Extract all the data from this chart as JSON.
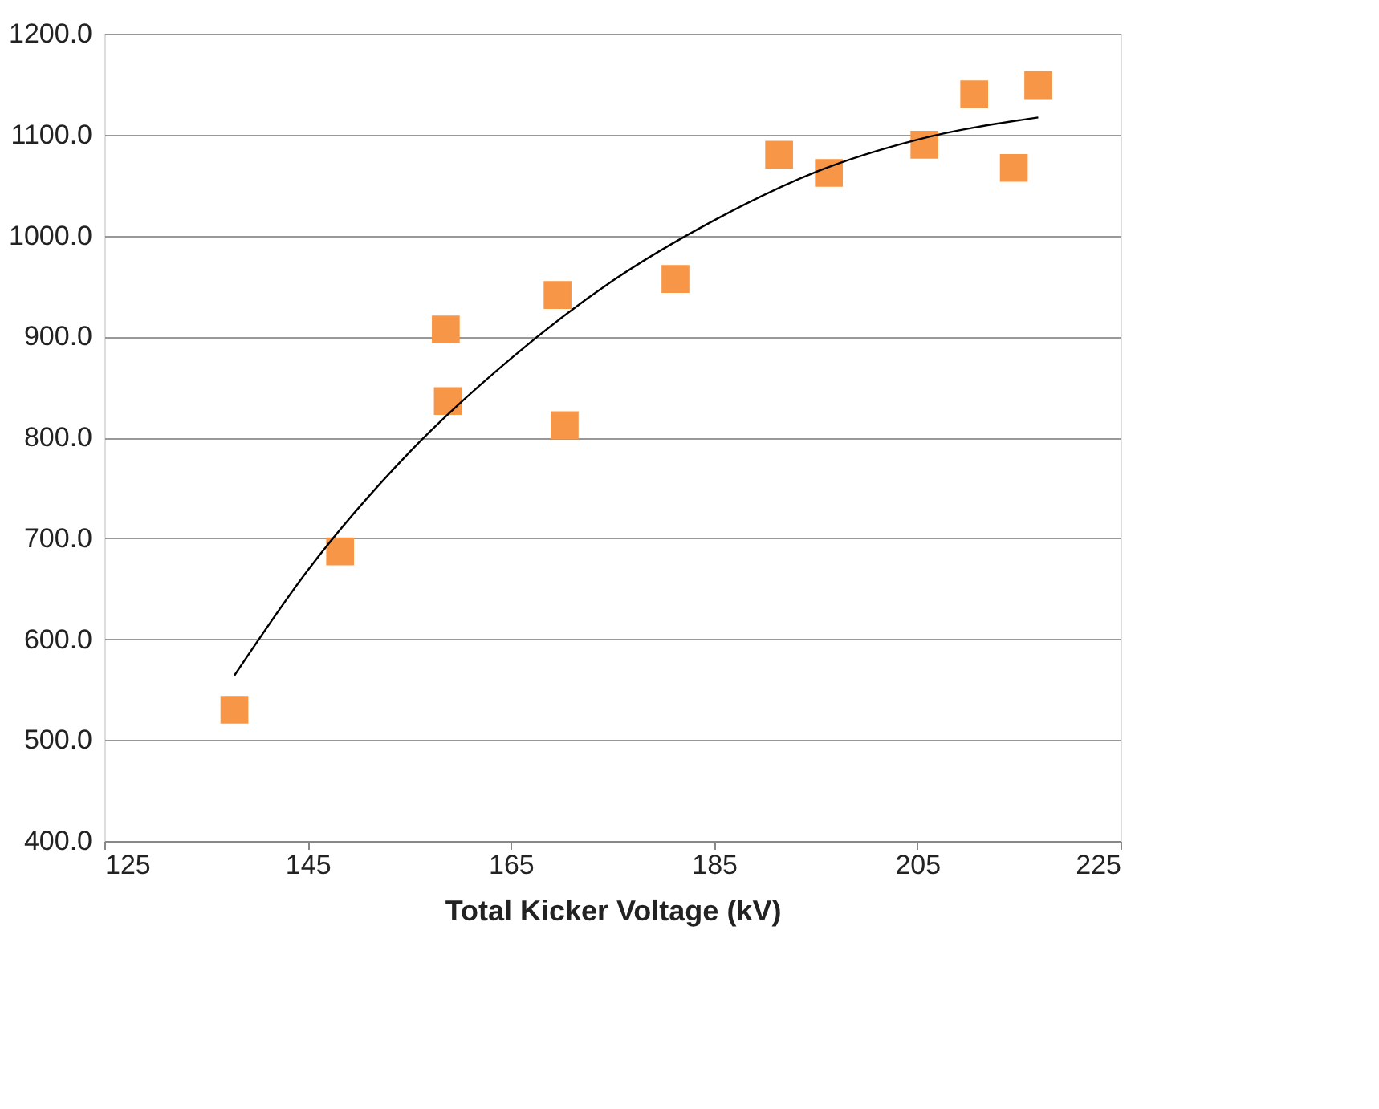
{
  "chart_data": {
    "type": "scatter",
    "xlabel": "Total Kicker Voltage (kV)",
    "xlim": [
      125,
      225
    ],
    "xticks": [
      125,
      145,
      165,
      185,
      205,
      225
    ],
    "ylim": [
      400,
      1200
    ],
    "yticks": [
      {
        "value": 400,
        "label": "400.0"
      },
      {
        "value": 500,
        "label": "500.0"
      },
      {
        "value": 600,
        "label": "600.0"
      },
      {
        "value": 700,
        "label": "700.0"
      },
      {
        "value": 800,
        "label": "800.0"
      },
      {
        "value": 900,
        "label": "900.0"
      },
      {
        "value": 1000,
        "label": "1000.0"
      },
      {
        "value": 1100,
        "label": "1100.0"
      },
      {
        "value": 1200,
        "label": "1200.0"
      }
    ],
    "grid": "y",
    "series": [
      {
        "marker": "square",
        "color": "#f79646",
        "x": [
          137.8,
          148.2,
          158.6,
          158.8,
          169.6,
          170.3,
          181.2,
          191.4,
          196.3,
          205.7,
          210.6,
          214.5,
          216.9
        ],
        "values": [
          530,
          687,
          907,
          836,
          941,
          812,
          957,
          1080,
          1062,
          1090,
          1140,
          1067,
          1149
        ]
      },
      {
        "type": "line",
        "color": "#000000",
        "line_style": "solid",
        "x": [
          137.8,
          145,
          155,
          165,
          175,
          185,
          195,
          205,
          216.9
        ],
        "values": [
          564,
          668,
          785,
          878,
          955,
          1015,
          1063,
          1095,
          1117
        ]
      }
    ]
  }
}
